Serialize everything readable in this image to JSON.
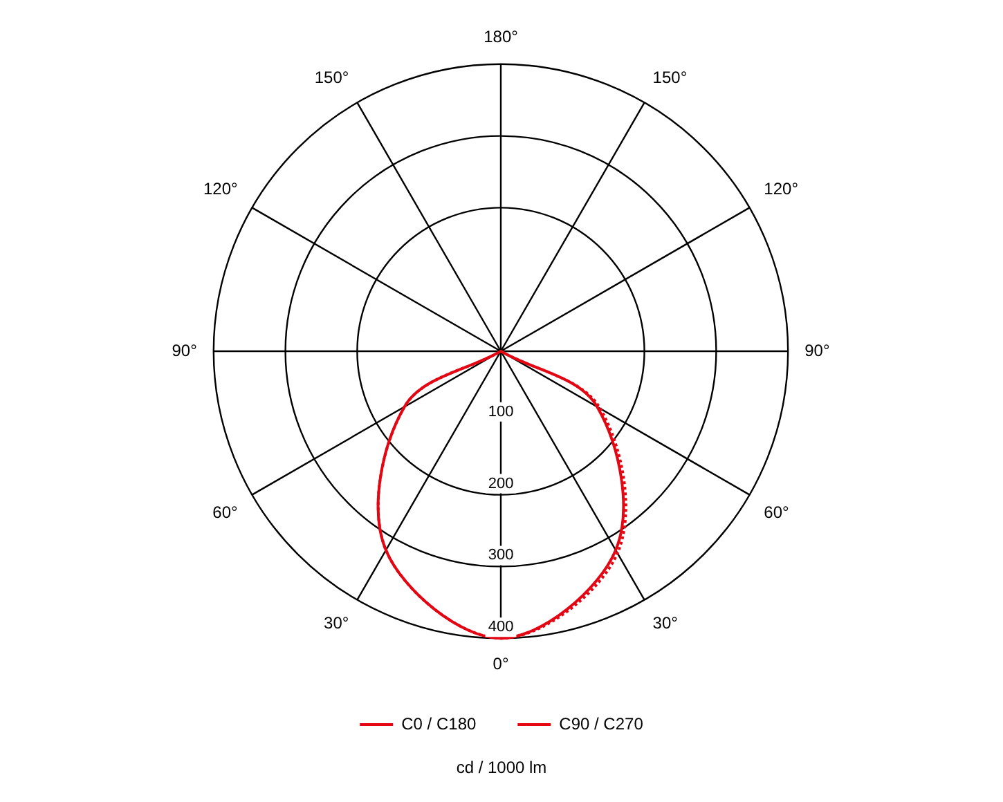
{
  "chart_data": {
    "type": "radar",
    "xlabel": "cd / 1000 lm",
    "categories": [
      "180°",
      "150°",
      "120°",
      "90°",
      "60°",
      "30°",
      "0°",
      "30°",
      "60°",
      "90°",
      "120°",
      "150°"
    ],
    "series": [
      {
        "name": "C0 / C180",
        "color": "#e30613",
        "line_style": "solid",
        "values": [
          0,
          0,
          0,
          0,
          155,
          320,
          400,
          320,
          155,
          0,
          0,
          0
        ]
      },
      {
        "name": "C90 / C270",
        "color": "#e30613",
        "line_style": "dotted",
        "values": [
          0,
          0,
          0,
          0,
          160,
          325,
          400,
          320,
          155,
          0,
          0,
          0
        ]
      }
    ],
    "ylim": [
      0,
      400
    ],
    "yticks": [
      100,
      200,
      300,
      400
    ],
    "grid": true,
    "legend": "bottom",
    "marker": "none"
  }
}
